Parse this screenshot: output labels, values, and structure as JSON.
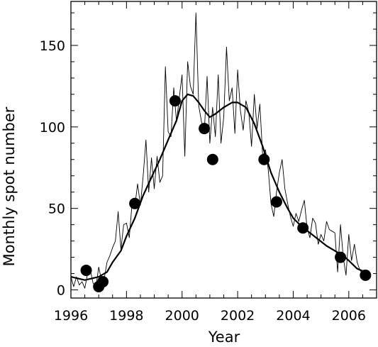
{
  "chart_data": {
    "type": "line",
    "xlabel": "Year",
    "ylabel": "Monthly spot number",
    "xlim": [
      1996,
      2007
    ],
    "ylim": [
      -5,
      177
    ],
    "xticks": [
      1996,
      1998,
      2000,
      2002,
      2004,
      2006
    ],
    "yticks": [
      0,
      50,
      100,
      150
    ],
    "grid": false,
    "series": [
      {
        "style": "thin-line",
        "x": [
          1996.0,
          1996.1,
          1996.2,
          1996.3,
          1996.4,
          1996.5,
          1996.6,
          1996.7,
          1996.8,
          1996.9,
          1997.0,
          1997.1,
          1997.2,
          1997.3,
          1997.4,
          1997.5,
          1997.6,
          1997.7,
          1997.8,
          1997.9,
          1998.0,
          1998.1,
          1998.2,
          1998.3,
          1998.4,
          1998.5,
          1998.6,
          1998.7,
          1998.8,
          1998.9,
          1999.0,
          1999.1,
          1999.2,
          1999.3,
          1999.4,
          1999.5,
          1999.6,
          1999.7,
          1999.8,
          1999.9,
          2000.0,
          2000.1,
          2000.2,
          2000.3,
          2000.4,
          2000.5,
          2000.6,
          2000.7,
          2000.8,
          2000.9,
          2001.0,
          2001.1,
          2001.2,
          2001.3,
          2001.4,
          2001.5,
          2001.6,
          2001.7,
          2001.8,
          2001.9,
          2002.0,
          2002.1,
          2002.2,
          2002.3,
          2002.4,
          2002.5,
          2002.6,
          2002.7,
          2002.8,
          2002.9,
          2003.0,
          2003.1,
          2003.2,
          2003.3,
          2003.4,
          2003.5,
          2003.6,
          2003.7,
          2003.8,
          2003.9,
          2004.0,
          2004.1,
          2004.2,
          2004.3,
          2004.4,
          2004.5,
          2004.6,
          2004.7,
          2004.8,
          2004.9,
          2005.0,
          2005.1,
          2005.2,
          2005.3,
          2005.4,
          2005.5,
          2005.6,
          2005.7,
          2005.8,
          2005.9,
          2006.0,
          2006.1,
          2006.2,
          2006.3,
          2006.4,
          2006.5,
          2006.6,
          2006.7
        ],
        "y": [
          8,
          2,
          8,
          3,
          5,
          1,
          10,
          12,
          4,
          2,
          14,
          6,
          7,
          17,
          21,
          26,
          30,
          48,
          25,
          40,
          41,
          32,
          53,
          51,
          65,
          52,
          70,
          92,
          60,
          81,
          62,
          82,
          66,
          70,
          137,
          97,
          94,
          124,
          103,
          118,
          132,
          82,
          140,
          125,
          120,
          170,
          113,
          103,
          97,
          131,
          90,
          112,
          94,
          132,
          90,
          106,
          149,
          116,
          124,
          96,
          135,
          110,
          98,
          116,
          109,
          88,
          120,
          99,
          114,
          82,
          86,
          74,
          53,
          45,
          60,
          72,
          80,
          62,
          53,
          45,
          39,
          47,
          42,
          49,
          55,
          38,
          32,
          44,
          41,
          28,
          34,
          30,
          42,
          37,
          36,
          35,
          11,
          40,
          20,
          9,
          34,
          18,
          28,
          17,
          12,
          10,
          9,
          10
        ]
      },
      {
        "style": "thick-line",
        "x": [
          1996.0,
          1996.5,
          1997.0,
          1997.3,
          1997.5,
          1997.8,
          1998.0,
          1998.3,
          1998.6,
          1998.9,
          1999.2,
          1999.5,
          1999.8,
          2000.0,
          2000.2,
          2000.4,
          2000.6,
          2000.8,
          2001.0,
          2001.2,
          2001.5,
          2001.8,
          2002.0,
          2002.3,
          2002.6,
          2002.9,
          2003.2,
          2003.5,
          2003.8,
          2004.0,
          2004.3,
          2004.6,
          2004.9,
          2005.2,
          2005.5,
          2005.8,
          2006.0,
          2006.3,
          2006.6
        ],
        "y": [
          8,
          6,
          8,
          11,
          17,
          24,
          33,
          44,
          58,
          69,
          80,
          92,
          104,
          116,
          120,
          119,
          115,
          110,
          106,
          108,
          112,
          115,
          115,
          112,
          102,
          88,
          72,
          60,
          50,
          44,
          39,
          35,
          31,
          27,
          24,
          21,
          18,
          13,
          11
        ]
      },
      {
        "style": "markers",
        "x": [
          1996.55,
          1997.0,
          1997.15,
          1998.3,
          1999.75,
          2000.8,
          2001.1,
          2002.95,
          2003.4,
          2004.35,
          2005.7,
          2006.6
        ],
        "y": [
          12,
          2,
          5,
          53,
          116,
          99,
          80,
          80,
          54,
          38,
          20,
          9
        ]
      }
    ]
  }
}
